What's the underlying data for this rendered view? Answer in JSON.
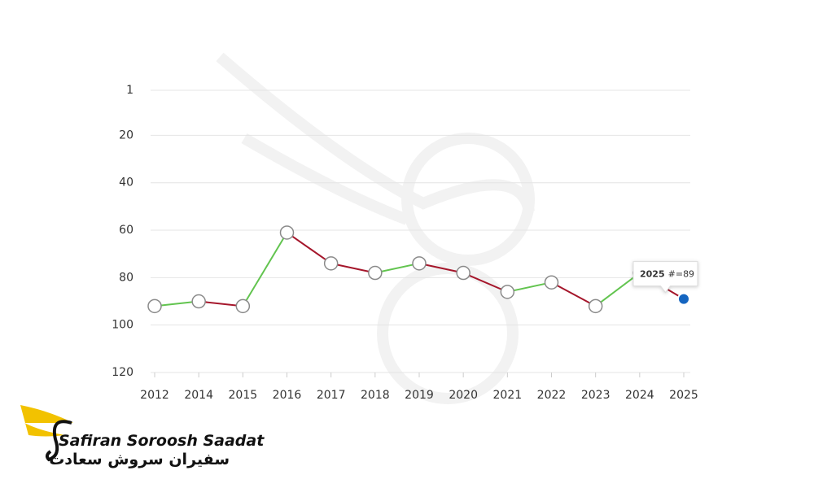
{
  "chart_data": {
    "type": "line",
    "categories": [
      "2012",
      "2014",
      "2015",
      "2016",
      "2017",
      "2018",
      "2019",
      "2020",
      "2021",
      "2022",
      "2023",
      "2024",
      "2025"
    ],
    "values": [
      92,
      90,
      92,
      61,
      74,
      78,
      74,
      78,
      86,
      82,
      92,
      78,
      89
    ],
    "ylim": [
      1,
      120
    ],
    "y_inverted": true,
    "yticks": [
      1,
      20,
      40,
      60,
      80,
      100,
      120
    ],
    "grid": true,
    "improve_color": "#62c44f",
    "decline_color": "#a5162b",
    "point_color": "#ffffff",
    "point_stroke": "#8a8a8a",
    "active_color": "#1565c0",
    "tooltip": {
      "index": 12,
      "prefix": "#="
    }
  },
  "logo": {
    "name": "Safiran Soroosh Saadat",
    "name_fa": "سفیران سروش سعادت"
  }
}
